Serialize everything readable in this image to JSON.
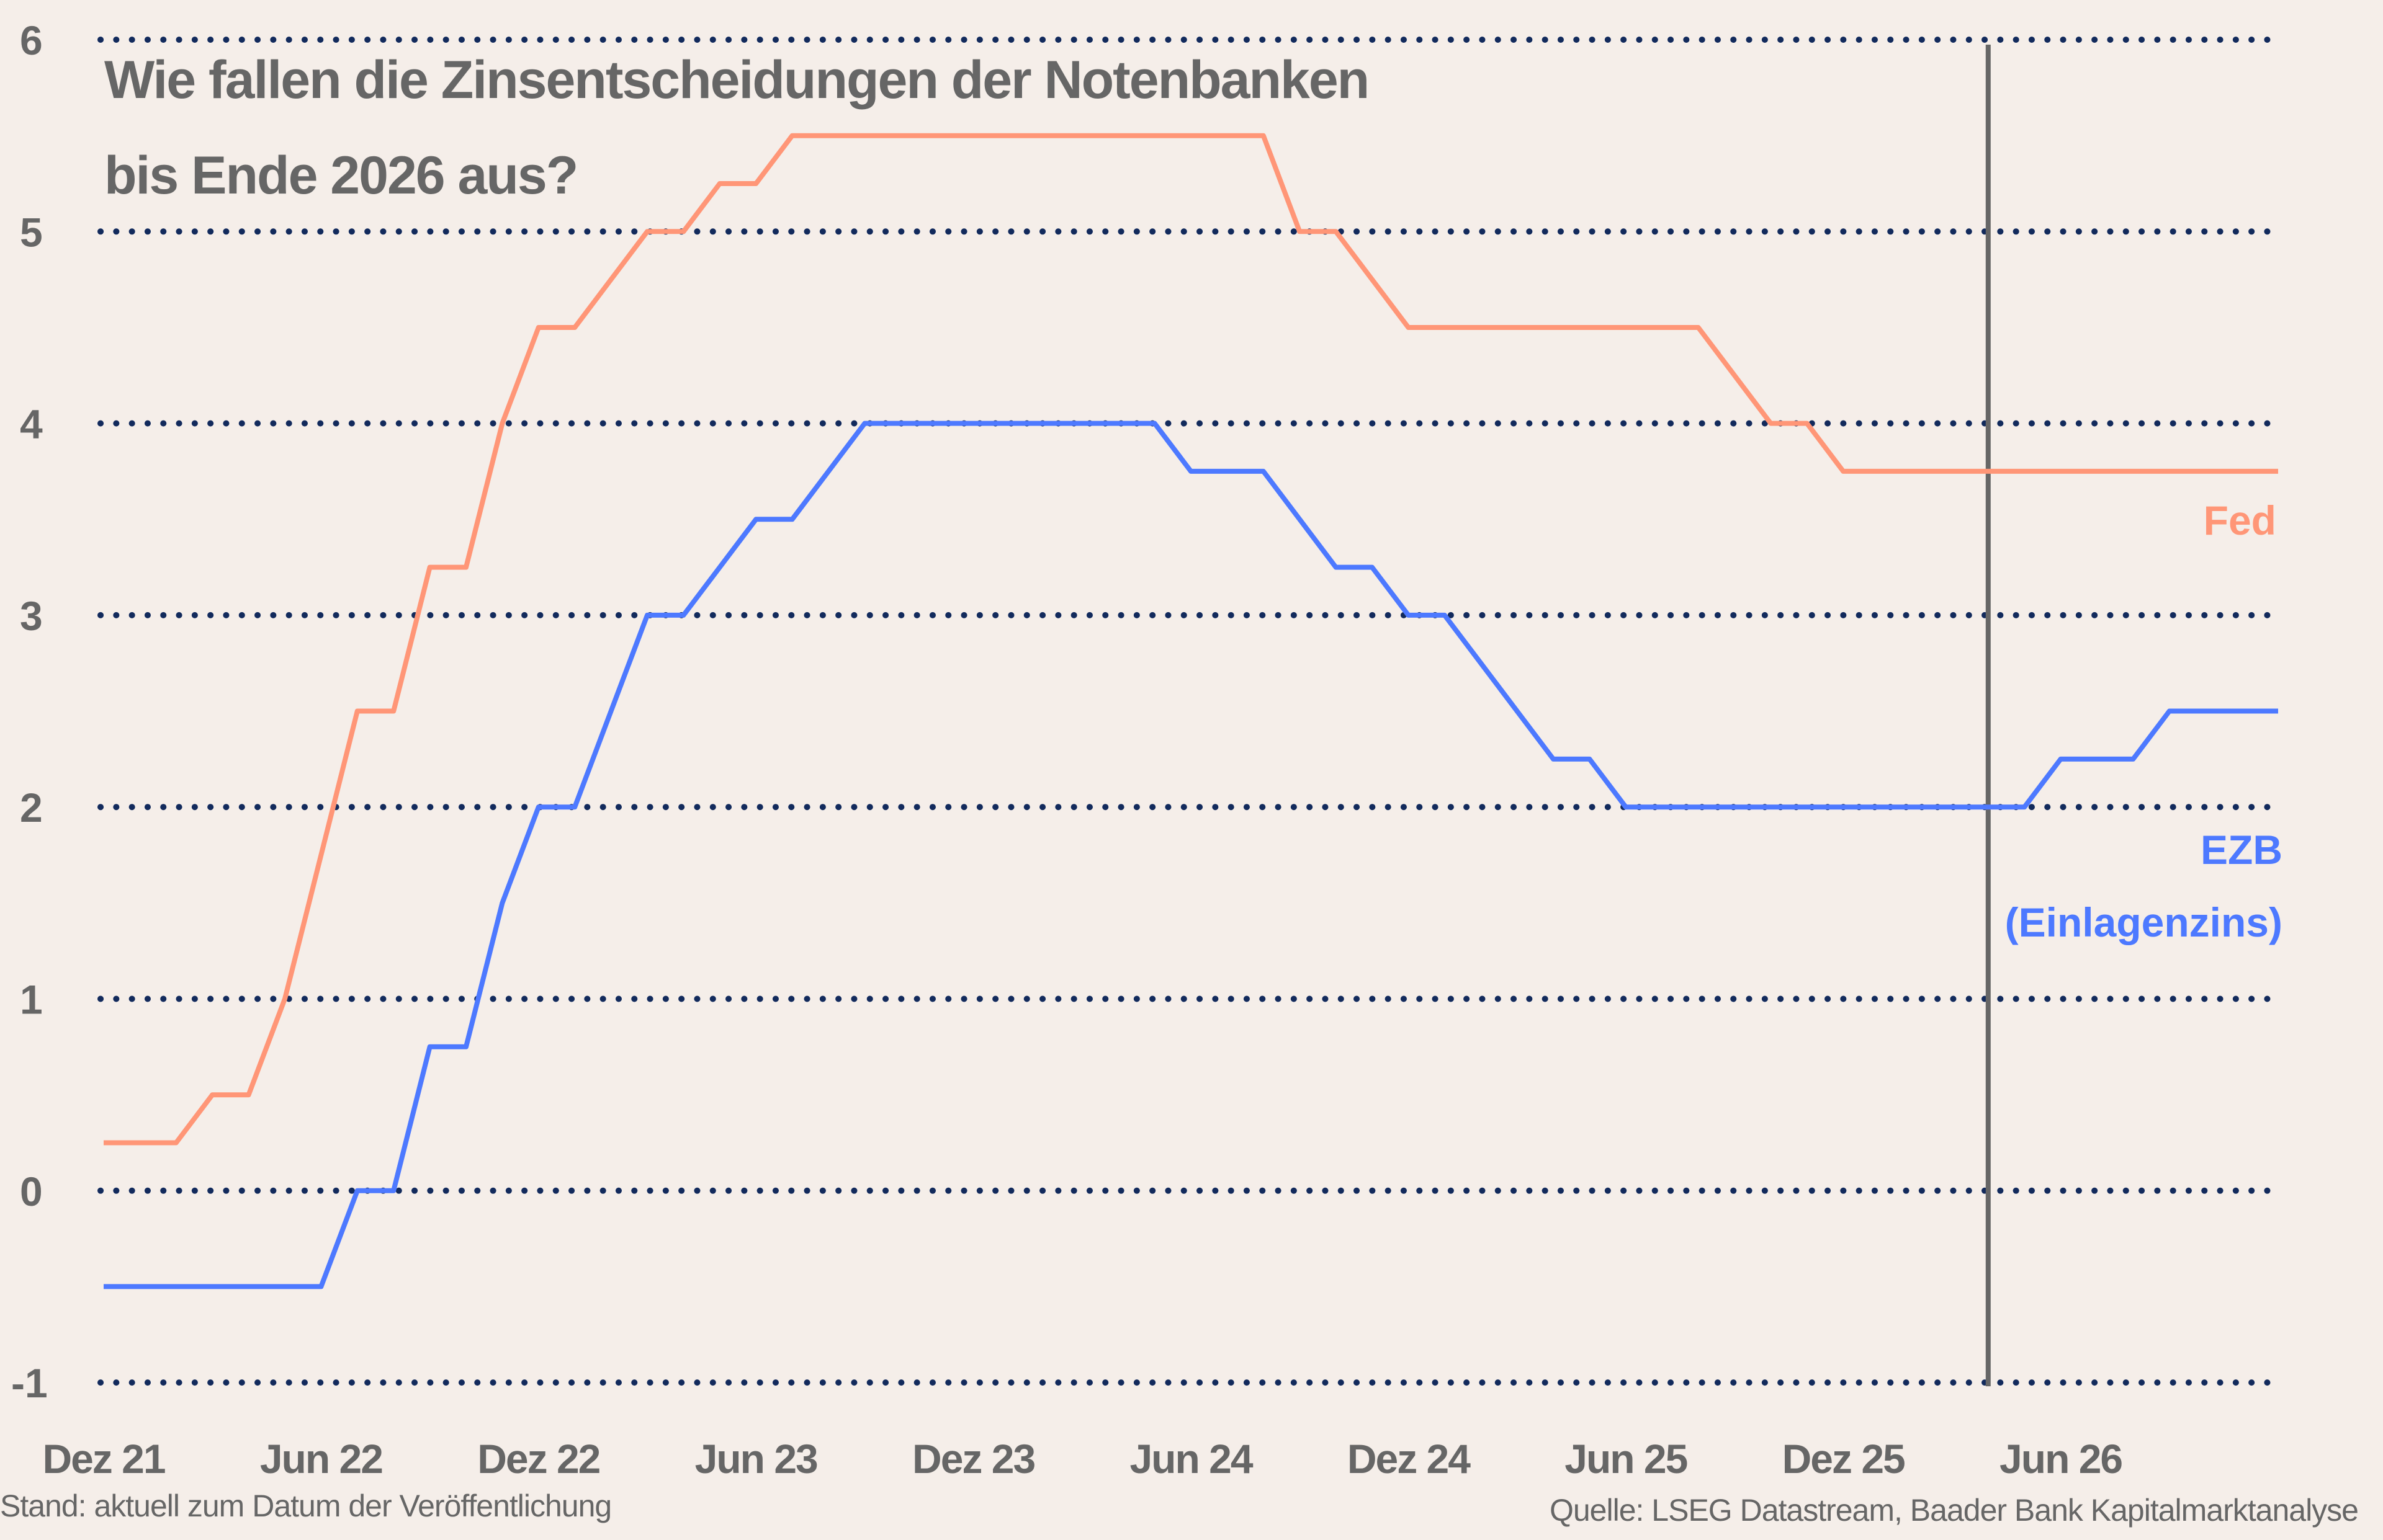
{
  "title": {
    "line1": "Wie fallen die Zinsentscheidungen der Notenbanken",
    "line2": "bis Ende 2026 aus?"
  },
  "footer": {
    "left": "Stand: aktuell zum Datum der Veröffentlichung",
    "right": "Quelle: LSEG Datastream, Baader Bank Kapitalmarktanalyse"
  },
  "labels": {
    "fed": "Fed",
    "ezb_line1": "EZB",
    "ezb_line2": "(Einlagenzins)"
  },
  "colors": {
    "background": "#f5eee9",
    "fed": "#ff9677",
    "ezb": "#4d79ff",
    "grid": "#122a5c",
    "text": "#666666",
    "marker_line": "#666666"
  },
  "chart_data": {
    "type": "line",
    "title": "Wie fallen die Zinsentscheidungen der Notenbanken bis Ende 2026 aus?",
    "xlabel": "",
    "ylabel": "",
    "ylim": [
      -1,
      6
    ],
    "yticks": [
      -1,
      0,
      1,
      2,
      3,
      4,
      5,
      6
    ],
    "xticks": [
      "Dez 21",
      "Jun 22",
      "Dez 22",
      "Jun 23",
      "Dez 23",
      "Jun 24",
      "Dez 24",
      "Jun 25",
      "Dez 25",
      "Jun 26"
    ],
    "x_unit": "months since Dez 21",
    "x_range": [
      0,
      60
    ],
    "grid": "horizontal dotted",
    "forecast_marker_month": 52,
    "legend_position": "inline right",
    "series": [
      {
        "name": "Fed",
        "points": [
          [
            0,
            0.25
          ],
          [
            2,
            0.25
          ],
          [
            3,
            0.5
          ],
          [
            4,
            0.5
          ],
          [
            5,
            1.0
          ],
          [
            7,
            2.5
          ],
          [
            8,
            2.5
          ],
          [
            9,
            3.25
          ],
          [
            10,
            3.25
          ],
          [
            11,
            4.0
          ],
          [
            12,
            4.5
          ],
          [
            13,
            4.5
          ],
          [
            14,
            4.75
          ],
          [
            15,
            5.0
          ],
          [
            16,
            5.0
          ],
          [
            17,
            5.25
          ],
          [
            18,
            5.25
          ],
          [
            19,
            5.5
          ],
          [
            32,
            5.5
          ],
          [
            33,
            5.0
          ],
          [
            34,
            5.0
          ],
          [
            36,
            4.5
          ],
          [
            44,
            4.5
          ],
          [
            46,
            4.0
          ],
          [
            47,
            4.0
          ],
          [
            48,
            3.75
          ],
          [
            60,
            3.75
          ]
        ]
      },
      {
        "name": "EZB (Einlagenzins)",
        "points": [
          [
            0,
            -0.5
          ],
          [
            6,
            -0.5
          ],
          [
            7,
            0.0
          ],
          [
            8,
            0.0
          ],
          [
            9,
            0.75
          ],
          [
            10,
            0.75
          ],
          [
            11,
            1.5
          ],
          [
            12,
            2.0
          ],
          [
            13,
            2.0
          ],
          [
            14,
            2.5
          ],
          [
            15,
            3.0
          ],
          [
            16,
            3.0
          ],
          [
            17,
            3.25
          ],
          [
            18,
            3.5
          ],
          [
            19,
            3.5
          ],
          [
            21,
            4.0
          ],
          [
            29,
            4.0
          ],
          [
            30,
            3.75
          ],
          [
            32,
            3.75
          ],
          [
            34,
            3.25
          ],
          [
            35,
            3.25
          ],
          [
            36,
            3.0
          ],
          [
            37,
            3.0
          ],
          [
            38,
            2.75
          ],
          [
            40,
            2.25
          ],
          [
            41,
            2.25
          ],
          [
            42,
            2.0
          ],
          [
            53,
            2.0
          ],
          [
            54,
            2.25
          ],
          [
            56,
            2.25
          ],
          [
            57,
            2.5
          ],
          [
            60,
            2.5
          ]
        ]
      }
    ]
  }
}
